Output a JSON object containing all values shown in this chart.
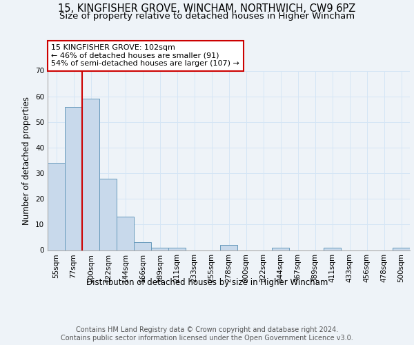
{
  "title1": "15, KINGFISHER GROVE, WINCHAM, NORTHWICH, CW9 6PZ",
  "title2": "Size of property relative to detached houses in Higher Wincham",
  "xlabel": "Distribution of detached houses by size in Higher Wincham",
  "ylabel": "Number of detached properties",
  "categories": [
    "55sqm",
    "77sqm",
    "100sqm",
    "122sqm",
    "144sqm",
    "166sqm",
    "189sqm",
    "211sqm",
    "233sqm",
    "255sqm",
    "278sqm",
    "300sqm",
    "322sqm",
    "344sqm",
    "367sqm",
    "389sqm",
    "411sqm",
    "433sqm",
    "456sqm",
    "478sqm",
    "500sqm"
  ],
  "values": [
    34,
    56,
    59,
    28,
    13,
    3,
    1,
    1,
    0,
    0,
    2,
    0,
    0,
    1,
    0,
    0,
    1,
    0,
    0,
    0,
    1
  ],
  "bar_color": "#c8d9eb",
  "bar_edge_color": "#6699bb",
  "grid_color": "#d5e5f5",
  "vline_color": "#cc0000",
  "vline_position": 2,
  "annotation_text": "15 KINGFISHER GROVE: 102sqm\n← 46% of detached houses are smaller (91)\n54% of semi-detached houses are larger (107) →",
  "annotation_box_color": "#ffffff",
  "annotation_box_edge": "#cc0000",
  "ylim": [
    0,
    70
  ],
  "yticks": [
    0,
    10,
    20,
    30,
    40,
    50,
    60,
    70
  ],
  "footnote": "Contains HM Land Registry data © Crown copyright and database right 2024.\nContains public sector information licensed under the Open Government Licence v3.0.",
  "title_fontsize": 10.5,
  "subtitle_fontsize": 9.5,
  "axis_label_fontsize": 8.5,
  "tick_fontsize": 7.5,
  "annotation_fontsize": 8,
  "footnote_fontsize": 7,
  "background_color": "#eef3f8"
}
